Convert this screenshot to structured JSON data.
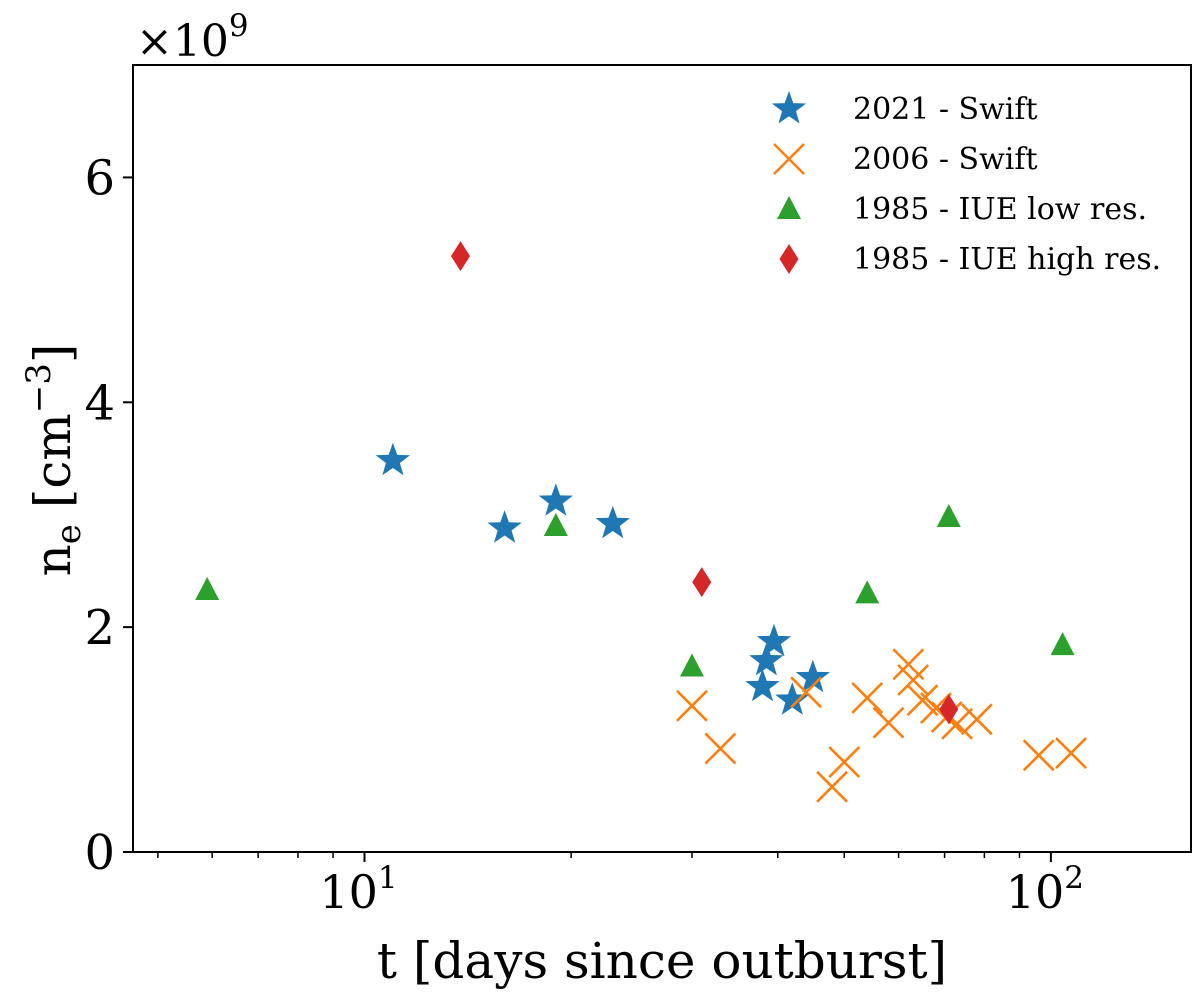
{
  "chart_data": {
    "type": "scatter",
    "title": "",
    "xlabel": "t [days since outburst]",
    "ylabel_main": "n",
    "ylabel_sub": "e",
    "ylabel_unit_open": " [cm",
    "ylabel_unit_sup": "−3",
    "ylabel_unit_close": "]",
    "y_offset_prefix": "×10",
    "y_offset_exp": "9",
    "x_scale": "log",
    "xlim": [
      4.6,
      160
    ],
    "ylim": [
      0,
      7.0
    ],
    "y_ticks": [
      {
        "value": 0,
        "label": "0"
      },
      {
        "value": 2,
        "label": "2"
      },
      {
        "value": 4,
        "label": "4"
      },
      {
        "value": 6,
        "label": "6"
      }
    ],
    "x_major_ticks": [
      {
        "value": 10,
        "base": "10",
        "exp": "1"
      },
      {
        "value": 100,
        "base": "10",
        "exp": "2"
      }
    ],
    "x_minor_ticks": [
      5,
      6,
      7,
      8,
      9,
      20,
      30,
      40,
      50,
      60,
      70,
      80,
      90
    ],
    "legend_position": "top-right",
    "series": [
      {
        "name": "2021 - Swift",
        "marker": "star",
        "color": "#1f77b4",
        "points": [
          {
            "x": 11.0,
            "y": 3.48
          },
          {
            "x": 16.0,
            "y": 2.88
          },
          {
            "x": 19.0,
            "y": 3.12
          },
          {
            "x": 23.0,
            "y": 2.92
          },
          {
            "x": 38.0,
            "y": 1.47
          },
          {
            "x": 38.5,
            "y": 1.7
          },
          {
            "x": 39.5,
            "y": 1.87
          },
          {
            "x": 42.0,
            "y": 1.35
          },
          {
            "x": 45.0,
            "y": 1.55
          }
        ]
      },
      {
        "name": "2006 - Swift",
        "marker": "x",
        "color": "#ff7f0e",
        "points": [
          {
            "x": 30.0,
            "y": 1.3
          },
          {
            "x": 33.0,
            "y": 0.92
          },
          {
            "x": 44.0,
            "y": 1.42
          },
          {
            "x": 48.0,
            "y": 0.58
          },
          {
            "x": 50.0,
            "y": 0.8
          },
          {
            "x": 54.0,
            "y": 1.37
          },
          {
            "x": 58.0,
            "y": 1.15
          },
          {
            "x": 62.0,
            "y": 1.67
          },
          {
            "x": 63.0,
            "y": 1.53
          },
          {
            "x": 65.0,
            "y": 1.35
          },
          {
            "x": 68.0,
            "y": 1.28
          },
          {
            "x": 70.5,
            "y": 1.2
          },
          {
            "x": 73.0,
            "y": 1.14
          },
          {
            "x": 78.0,
            "y": 1.18
          },
          {
            "x": 96.0,
            "y": 0.86
          },
          {
            "x": 107.0,
            "y": 0.88
          }
        ]
      },
      {
        "name": "1985 - IUE low res.",
        "marker": "triangle",
        "color": "#2ca02c",
        "points": [
          {
            "x": 5.9,
            "y": 2.33
          },
          {
            "x": 19.0,
            "y": 2.9
          },
          {
            "x": 30.0,
            "y": 1.65
          },
          {
            "x": 54.0,
            "y": 2.3
          },
          {
            "x": 71.0,
            "y": 2.98
          },
          {
            "x": 104.0,
            "y": 1.84
          }
        ]
      },
      {
        "name": "1985 - IUE high res.",
        "marker": "diamond",
        "color": "#d62728",
        "points": [
          {
            "x": 13.8,
            "y": 5.3
          },
          {
            "x": 31.0,
            "y": 2.4
          },
          {
            "x": 71.0,
            "y": 1.27
          }
        ]
      }
    ]
  }
}
